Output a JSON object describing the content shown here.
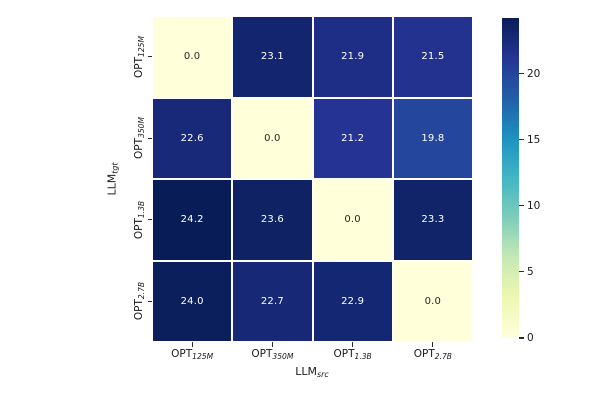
{
  "figure": {
    "background": "#ffffff"
  },
  "chart_data": {
    "type": "heatmap",
    "title": "",
    "x_axis": {
      "label_base": "LLM",
      "label_sub": "src"
    },
    "y_axis": {
      "label_base": "LLM",
      "label_sub": "tgt"
    },
    "x_tick_labels": [
      {
        "base": "OPT",
        "sub": "125M"
      },
      {
        "base": "OPT",
        "sub": "350M"
      },
      {
        "base": "OPT",
        "sub": "1.3B"
      },
      {
        "base": "OPT",
        "sub": "2.7B"
      }
    ],
    "y_tick_labels": [
      {
        "base": "OPT",
        "sub": "125M"
      },
      {
        "base": "OPT",
        "sub": "350M"
      },
      {
        "base": "OPT",
        "sub": "1.3B"
      },
      {
        "base": "OPT",
        "sub": "2.7B"
      }
    ],
    "rows": [
      [
        0.0,
        23.1,
        21.9,
        21.5
      ],
      [
        22.6,
        0.0,
        21.2,
        19.8
      ],
      [
        24.2,
        23.6,
        0.0,
        23.3
      ],
      [
        24.0,
        22.7,
        22.9,
        0.0
      ]
    ],
    "value_decimals": 1,
    "vmin": 0,
    "vmax": 24.2,
    "colormap": {
      "name": "YlGnBu",
      "stops": [
        {
          "pos": 0.0,
          "color": "#ffffd9"
        },
        {
          "pos": 0.125,
          "color": "#edf8b1"
        },
        {
          "pos": 0.25,
          "color": "#c7e9b4"
        },
        {
          "pos": 0.375,
          "color": "#7fcdbb"
        },
        {
          "pos": 0.5,
          "color": "#41b6c4"
        },
        {
          "pos": 0.625,
          "color": "#1d91c0"
        },
        {
          "pos": 0.75,
          "color": "#225ea8"
        },
        {
          "pos": 0.875,
          "color": "#253494"
        },
        {
          "pos": 1.0,
          "color": "#081d58"
        }
      ]
    },
    "colorbar": {
      "ticks": [
        "0",
        "5",
        "10",
        "15",
        "20"
      ],
      "position": "right"
    },
    "annotation_colors": {
      "on_light": "#262626",
      "on_dark": "#ffffff"
    },
    "grid": false
  }
}
